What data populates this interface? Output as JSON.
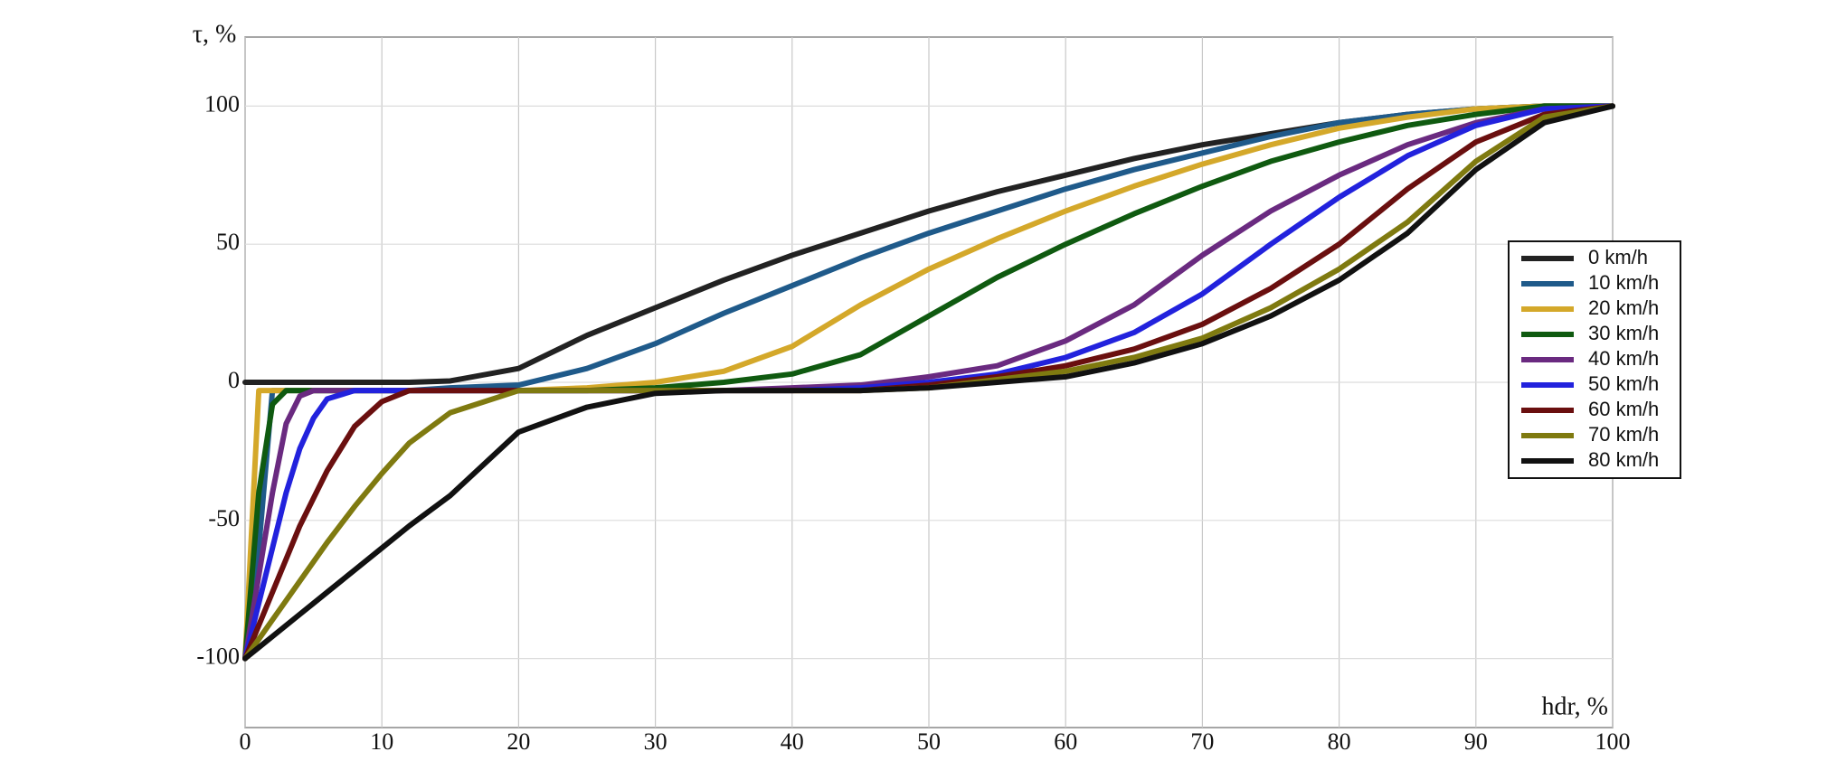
{
  "chart_data": {
    "type": "line",
    "xlabel": "hdr, %",
    "ylabel": "τ, %",
    "x": [
      0,
      1,
      2,
      3,
      4,
      5,
      6,
      8,
      10,
      12,
      15,
      20,
      25,
      30,
      35,
      40,
      45,
      50,
      55,
      60,
      65,
      70,
      75,
      80,
      85,
      90,
      95,
      100
    ],
    "xlim": [
      0,
      100
    ],
    "xticks": [
      0,
      10,
      20,
      30,
      40,
      50,
      60,
      70,
      80,
      90,
      100
    ],
    "ylim": [
      -125,
      125
    ],
    "yticks": [
      -100,
      -50,
      0,
      50,
      100
    ],
    "grid": true,
    "legend": "right",
    "series": [
      {
        "name": "0 km/h",
        "color": "#222222",
        "values": [
          0,
          0,
          0,
          0,
          0,
          0,
          0,
          0,
          0,
          0,
          0.5,
          5,
          17,
          27,
          37,
          46,
          54,
          62,
          69,
          75,
          81,
          86,
          90,
          94,
          97,
          99,
          100,
          100
        ]
      },
      {
        "name": "10 km/h",
        "color": "#1f5a8a",
        "values": [
          -100,
          -60,
          -3,
          -3,
          -3,
          -3,
          -3,
          -3,
          -3,
          -3,
          -2,
          -1,
          5,
          14,
          25,
          35,
          45,
          54,
          62,
          70,
          77,
          83,
          89,
          94,
          97,
          99,
          100,
          100
        ]
      },
      {
        "name": "20 km/h",
        "color": "#d4a82a",
        "values": [
          -100,
          -3,
          -3,
          -3,
          -3,
          -3,
          -3,
          -3,
          -3,
          -3,
          -3,
          -3,
          -2,
          0,
          4,
          13,
          28,
          41,
          52,
          62,
          71,
          79,
          86,
          92,
          96,
          99,
          100,
          100
        ]
      },
      {
        "name": "30 km/h",
        "color": "#0f5a10",
        "values": [
          -100,
          -40,
          -8,
          -3,
          -3,
          -3,
          -3,
          -3,
          -3,
          -3,
          -3,
          -3,
          -3,
          -2,
          0,
          3,
          10,
          24,
          38,
          50,
          61,
          71,
          80,
          87,
          93,
          97,
          100,
          100
        ]
      },
      {
        "name": "40 km/h",
        "color": "#6a2a80",
        "values": [
          -100,
          -70,
          -40,
          -15,
          -5,
          -3,
          -3,
          -3,
          -3,
          -3,
          -3,
          -3,
          -3,
          -3,
          -3,
          -2,
          -1,
          2,
          6,
          15,
          28,
          46,
          62,
          75,
          86,
          94,
          99,
          100
        ]
      },
      {
        "name": "50 km/h",
        "color": "#2222dd",
        "values": [
          -100,
          -80,
          -60,
          -40,
          -24,
          -13,
          -6,
          -3,
          -3,
          -3,
          -3,
          -3,
          -3,
          -3,
          -3,
          -3,
          -2,
          0,
          3,
          9,
          18,
          32,
          50,
          67,
          82,
          93,
          99,
          100
        ]
      },
      {
        "name": "60 km/h",
        "color": "#6a0f0f",
        "values": [
          -100,
          -88,
          -76,
          -64,
          -52,
          -42,
          -32,
          -16,
          -7,
          -3,
          -3,
          -3,
          -3,
          -3,
          -3,
          -3,
          -3,
          -1,
          2,
          6,
          12,
          21,
          34,
          50,
          70,
          87,
          97,
          100
        ]
      },
      {
        "name": "70 km/h",
        "color": "#7f7a10",
        "values": [
          -100,
          -93,
          -86,
          -79,
          -72,
          -65,
          -58,
          -45,
          -33,
          -22,
          -11,
          -3,
          -3,
          -3,
          -3,
          -3,
          -3,
          -2,
          1,
          4,
          9,
          16,
          27,
          41,
          58,
          80,
          96,
          100
        ]
      },
      {
        "name": "80 km/h",
        "color": "#111111",
        "values": [
          -100,
          -96,
          -92,
          -88,
          -84,
          -80,
          -76,
          -68,
          -60,
          -52,
          -41,
          -18,
          -9,
          -4,
          -3,
          -3,
          -3,
          -2,
          0,
          2,
          7,
          14,
          24,
          37,
          54,
          77,
          94,
          100
        ]
      }
    ]
  }
}
